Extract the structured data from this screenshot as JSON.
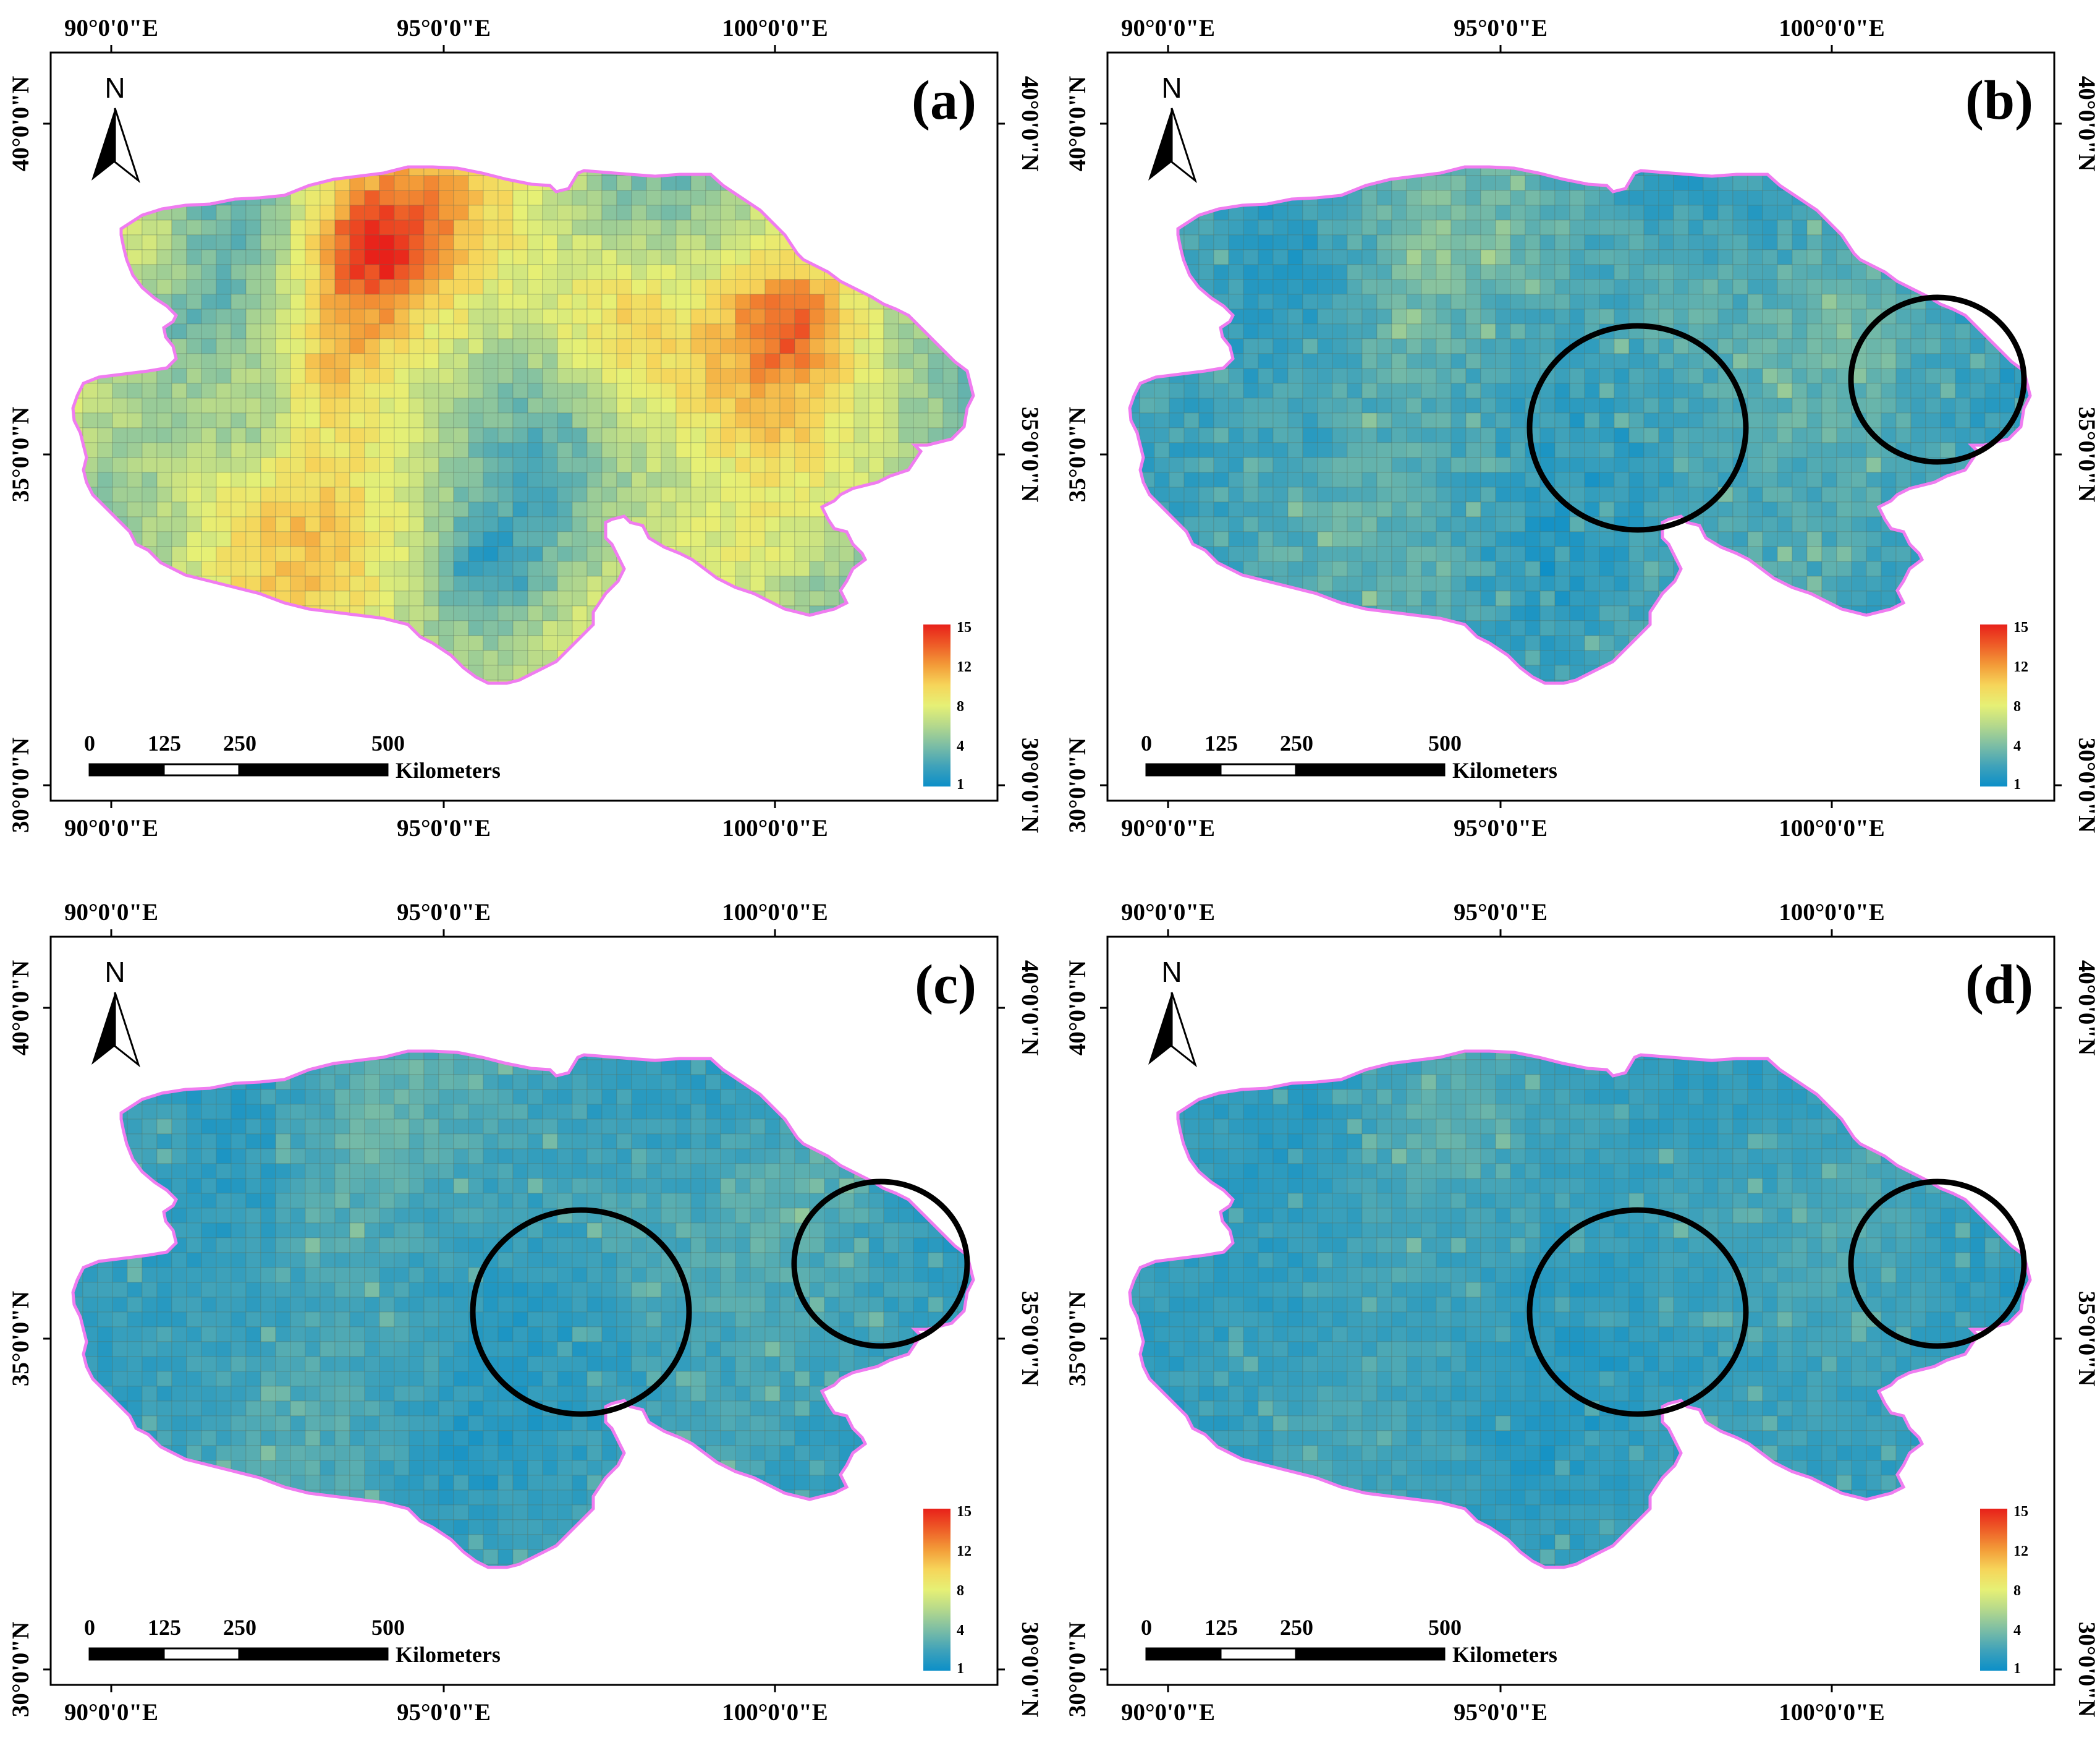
{
  "colors": {
    "ramp": [
      "#0C8FC8",
      "#3FA2BA",
      "#7BBDA5",
      "#B4D88C",
      "#E6F075",
      "#F6D55A",
      "#F39B38",
      "#EE5C27",
      "#E8211A"
    ],
    "boundary": "#F07CF0",
    "circle": "#000000"
  },
  "axes": {
    "top_lon": [
      "90°0'0\"E",
      "95°0'0\"E",
      "100°0'0\"E"
    ],
    "bottom_lon": [
      "90°0'0\"E",
      "95°0'0\"E",
      "100°0'0\"E"
    ],
    "left_lat": [
      "40°0'0\"N",
      "35°0'0\"N",
      "30°0'0\"N"
    ],
    "right_lat": [
      "40°0'0\"N",
      "35°0'0\"N",
      "30°0'0\"N"
    ]
  },
  "north_arrow": {
    "label": "N"
  },
  "scale_bar": {
    "ticks": [
      "0",
      "125",
      "250",
      "500"
    ],
    "unit": "Kilometers"
  },
  "legend": {
    "labels": [
      "15",
      "12",
      "8",
      "4",
      "1"
    ]
  },
  "panels": [
    {
      "id": "a",
      "label": "(a)",
      "intensity": 1.0,
      "circles": 0
    },
    {
      "id": "b",
      "label": "(b)",
      "intensity": 0.42,
      "circles": 2
    },
    {
      "id": "c",
      "label": "(c)",
      "intensity": 0.32,
      "circles": 2
    },
    {
      "id": "d",
      "label": "(d)",
      "intensity": 0.26,
      "circles": 2
    }
  ]
}
